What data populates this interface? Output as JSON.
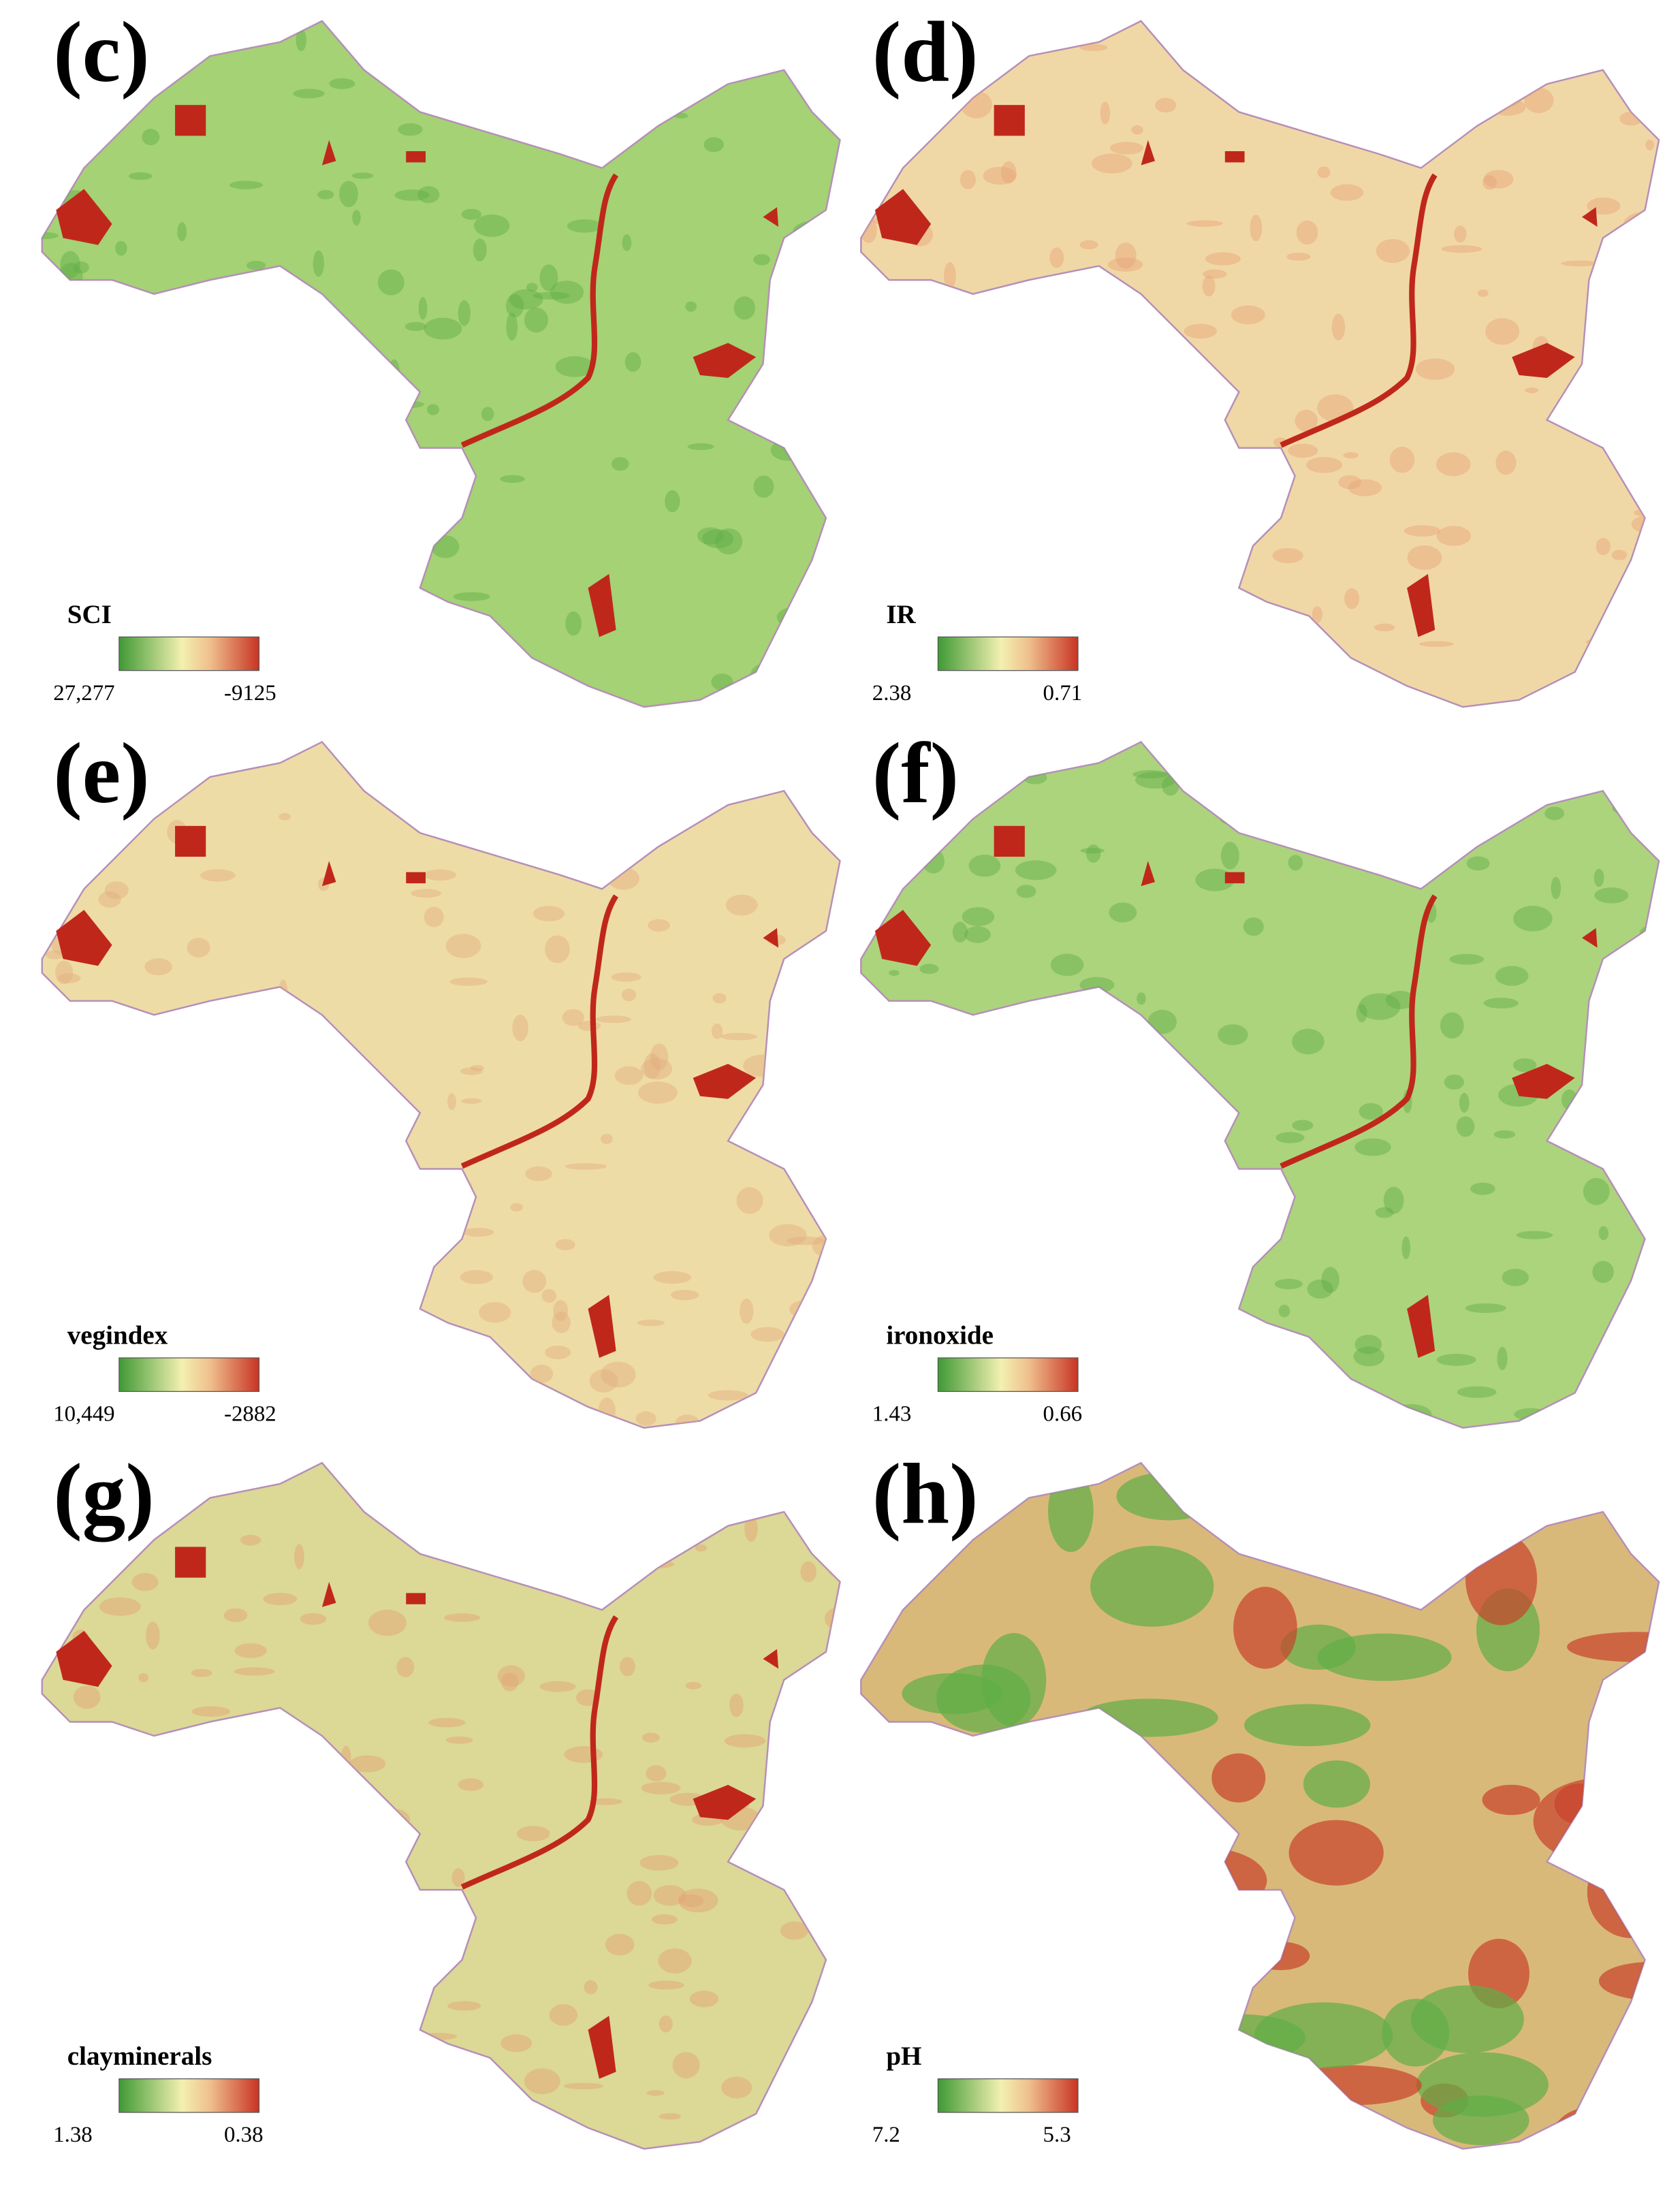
{
  "panels": [
    {
      "label": "(c)",
      "legend": {
        "title": "SCI",
        "min": "27,277",
        "max": "-9125"
      }
    },
    {
      "label": "(d)",
      "legend": {
        "title": "IR",
        "min": "2.38",
        "max": "0.71"
      }
    },
    {
      "label": "(e)",
      "legend": {
        "title": "vegindex",
        "min": "10,449",
        "max": "-2882"
      }
    },
    {
      "label": "(f)",
      "legend": {
        "title": "ironoxide",
        "min": "1.43",
        "max": "0.66"
      }
    },
    {
      "label": "(g)",
      "legend": {
        "title": "clayminerals",
        "min": "1.38",
        "max": "0.38"
      }
    },
    {
      "label": "(h)",
      "legend": {
        "title": "pH",
        "min": "7.2",
        "max": "5.3"
      }
    }
  ]
}
